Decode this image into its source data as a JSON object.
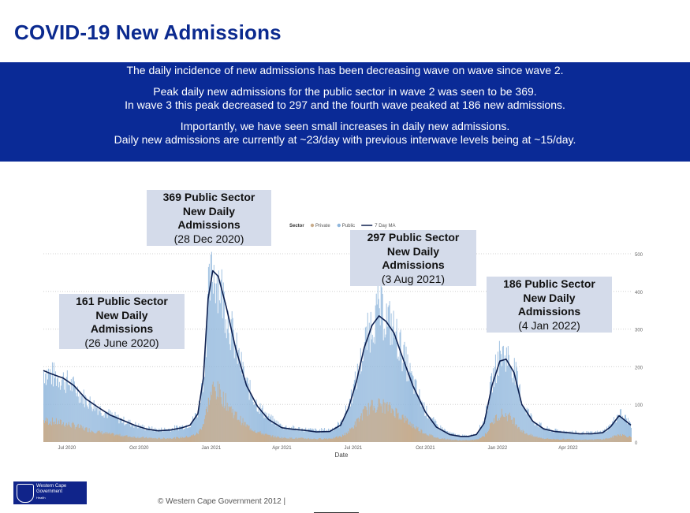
{
  "title": "COVID-19 New Admissions",
  "banner": {
    "lines": [
      "The daily incidence of new admissions has been decreasing wave on wave since wave 2.",
      "",
      "Peak daily new admissions for the public sector in wave 2 was seen to be 369.",
      "In wave 3 this peak decreased to 297 and the fourth wave peaked at 186 new admissions.",
      "",
      "Importantly, we have seen small increases in daily new admissions.",
      "Daily new admissions are currently at ~23/day with previous interwave levels being at ~15/day."
    ]
  },
  "callouts": [
    {
      "line1": "161 Public Sector",
      "line2": "New Daily",
      "line3": "Admissions",
      "date": "(26 June 2020)"
    },
    {
      "line1": "369 Public Sector",
      "line2": "New Daily",
      "line3": "Admissions",
      "date": "(28 Dec 2020)"
    },
    {
      "line1": "297 Public Sector",
      "line2": "New Daily",
      "line3": "Admissions",
      "date": "(3 Aug 2021)"
    },
    {
      "line1": "186 Public Sector",
      "line2": "New Daily",
      "line3": "Admissions",
      "date": "(4 Jan 2022)"
    }
  ],
  "chart_data": {
    "type": "bar",
    "stacked": true,
    "xlabel": "Date",
    "ylabel": "",
    "ylim": [
      0,
      500
    ],
    "yticks": [
      0,
      100,
      200,
      300,
      400,
      500
    ],
    "grid": true,
    "legend": {
      "title": "Sector",
      "position": "top",
      "entries": [
        "Private",
        "Public",
        "7 Day MA"
      ]
    },
    "x_ticks": [
      "Jul 2020",
      "Oct 2020",
      "Jan 2021",
      "Apr 2021",
      "Jul 2021",
      "Oct 2021",
      "Jan 2022",
      "Apr 2022"
    ],
    "x_tick_dates": [
      "2020-07-01",
      "2020-10-01",
      "2021-01-01",
      "2021-04-01",
      "2021-07-01",
      "2021-10-01",
      "2022-01-01",
      "2022-04-01"
    ],
    "x_range": [
      "2020-06-01",
      "2022-06-20"
    ],
    "series": [
      {
        "name": "Private",
        "color": "#c9ad8c"
      },
      {
        "name": "Public",
        "color": "#8fb6dc"
      },
      {
        "name": "7 Day MA",
        "color": "#0d1f4f"
      }
    ],
    "anchors": {
      "x": [
        "2020-06-01",
        "2020-06-10",
        "2020-06-26",
        "2020-07-10",
        "2020-07-25",
        "2020-08-10",
        "2020-08-25",
        "2020-09-10",
        "2020-09-25",
        "2020-10-10",
        "2020-10-25",
        "2020-11-10",
        "2020-11-25",
        "2020-12-05",
        "2020-12-15",
        "2020-12-22",
        "2020-12-28",
        "2021-01-03",
        "2021-01-10",
        "2021-01-20",
        "2021-02-01",
        "2021-02-15",
        "2021-03-01",
        "2021-03-15",
        "2021-04-01",
        "2021-04-15",
        "2021-05-01",
        "2021-05-15",
        "2021-06-01",
        "2021-06-15",
        "2021-06-25",
        "2021-07-05",
        "2021-07-15",
        "2021-07-25",
        "2021-08-03",
        "2021-08-12",
        "2021-08-22",
        "2021-09-01",
        "2021-09-15",
        "2021-10-01",
        "2021-10-15",
        "2021-11-01",
        "2021-11-15",
        "2021-11-25",
        "2021-12-05",
        "2021-12-15",
        "2021-12-25",
        "2022-01-04",
        "2022-01-12",
        "2022-01-22",
        "2022-02-01",
        "2022-02-15",
        "2022-03-01",
        "2022-03-15",
        "2022-04-01",
        "2022-04-15",
        "2022-05-01",
        "2022-05-15",
        "2022-05-25",
        "2022-06-05",
        "2022-06-20"
      ],
      "ma": [
        190,
        182,
        170,
        150,
        115,
        92,
        72,
        58,
        45,
        35,
        30,
        32,
        38,
        45,
        75,
        170,
        380,
        455,
        440,
        360,
        250,
        150,
        95,
        60,
        38,
        34,
        31,
        27,
        28,
        45,
        90,
        160,
        250,
        310,
        335,
        320,
        290,
        230,
        150,
        80,
        40,
        20,
        15,
        15,
        20,
        50,
        150,
        215,
        220,
        185,
        100,
        55,
        35,
        28,
        25,
        22,
        22,
        25,
        40,
        70,
        45
      ],
      "public_peak": [
        205,
        195,
        181,
        158,
        122,
        98,
        78,
        62,
        50,
        40,
        35,
        38,
        45,
        52,
        90,
        200,
        420,
        500,
        470,
        380,
        270,
        165,
        105,
        70,
        45,
        40,
        36,
        33,
        35,
        55,
        110,
        185,
        280,
        350,
        380,
        360,
        320,
        260,
        170,
        90,
        48,
        25,
        18,
        18,
        25,
        65,
        180,
        255,
        250,
        210,
        115,
        62,
        40,
        32,
        30,
        26,
        26,
        30,
        48,
        85,
        52
      ],
      "private_peak": [
        60,
        58,
        52,
        46,
        36,
        28,
        22,
        18,
        14,
        12,
        10,
        11,
        13,
        16,
        25,
        55,
        110,
        150,
        140,
        110,
        75,
        45,
        28,
        18,
        12,
        11,
        10,
        9,
        10,
        15,
        30,
        55,
        85,
        100,
        105,
        98,
        88,
        70,
        45,
        24,
        12,
        7,
        5,
        5,
        7,
        18,
        55,
        80,
        75,
        60,
        30,
        16,
        10,
        8,
        8,
        7,
        7,
        8,
        12,
        22,
        14
      ]
    }
  },
  "footer": {
    "copyright": "© Western Cape Government 2012  |",
    "logo_text": [
      "Western Cape",
      "Government",
      "Health"
    ]
  }
}
